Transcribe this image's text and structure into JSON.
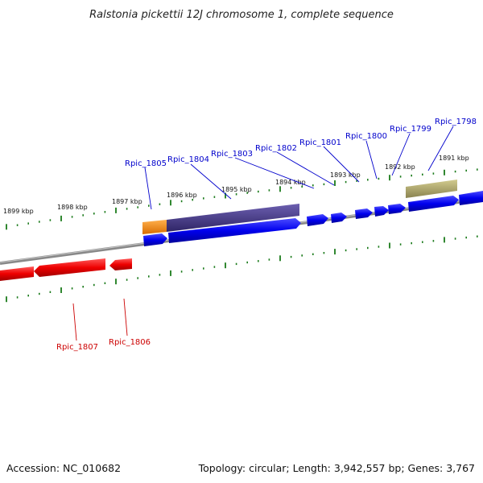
{
  "title": "Ralstonia pickettii 12J chromosome 1, complete sequence",
  "footer": {
    "accession": "Accession: NC_010682",
    "summary": "Topology: circular; Length: 3,942,557 bp; Genes: 3,767"
  },
  "colors": {
    "forward_gene": "#0000ee",
    "reverse_gene": "#ee0000",
    "forward_label": "#0000cc",
    "reverse_label": "#cc0000",
    "tick": "#1a7a1a",
    "backbone": "#888888",
    "orange_feature": "#f28c1c",
    "purple_feature": "#4b3d8c",
    "olive_feature": "#b5ad6e"
  },
  "kbp_labels": [
    "1899 kbp",
    "1898 kbp",
    "1897 kbp",
    "1896 kbp",
    "1895 kbp",
    "1894 kbp",
    "1893 kbp",
    "1892 kbp",
    "1891 kbp"
  ],
  "forward_genes": [
    "Rpic_1805",
    "Rpic_1804",
    "Rpic_1803",
    "Rpic_1802",
    "Rpic_1801",
    "Rpic_1800",
    "Rpic_1799",
    "Rpic_1798"
  ],
  "reverse_genes": [
    "Rpic_1807",
    "Rpic_1806"
  ]
}
